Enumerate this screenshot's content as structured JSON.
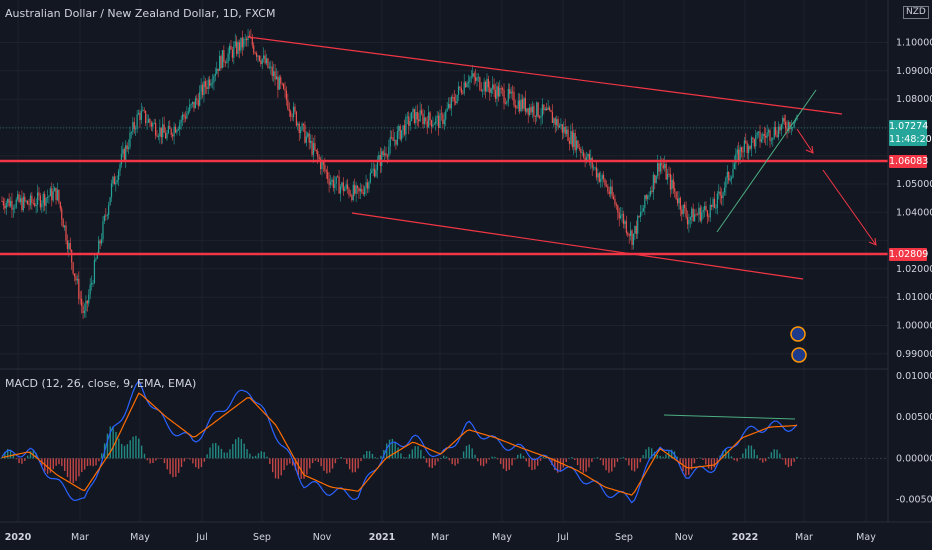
{
  "header": {
    "title": "Australian Dollar / New Zealand Dollar, 1D, FXCM",
    "currency": "NZD"
  },
  "price_panel": {
    "y_ticks": [
      "1.10000",
      "1.09000",
      "1.08000",
      "1.06083",
      "1.05000",
      "1.04000",
      "1.02809",
      "1.02000",
      "1.01000",
      "1.00000",
      "0.99000"
    ],
    "current_price": "1.07274",
    "countdown": "11:48:20",
    "resistance_label": "1.06083",
    "support_label": "1.02809",
    "colors": {
      "up": "#26a69a",
      "down": "#ef5350",
      "lines": "#f23645",
      "badge": "#26a69a",
      "trend": "#4caf82"
    }
  },
  "macd_panel": {
    "title": "MACD (12, 26, close, 9, EMA, EMA)",
    "y_ticks": [
      "0.01000",
      "0.00500",
      "0.00000",
      "-0.00500"
    ],
    "colors": {
      "macd": "#2962ff",
      "signal": "#ff6d00",
      "hist_up": "#26a69a",
      "hist_down": "#ef5350"
    }
  },
  "x_axis": {
    "labels": [
      "2020",
      "Mar",
      "May",
      "Jul",
      "Sep",
      "Nov",
      "2021",
      "Mar",
      "May",
      "Jul",
      "Sep",
      "Nov",
      "2022",
      "Mar",
      "May"
    ]
  },
  "chart_data": {
    "type": "line",
    "price": {
      "type": "line",
      "title": "Australian Dollar / New Zealand Dollar, 1D, FXCM",
      "ylim": [
        0.985,
        1.115
      ],
      "x": [
        "2020-01",
        "2020-02",
        "2020-03",
        "2020-03-mid",
        "2020-04",
        "2020-05",
        "2020-06",
        "2020-07",
        "2020-08",
        "2020-08-end",
        "2020-09",
        "2020-10",
        "2020-11",
        "2020-11-end",
        "2020-12",
        "2021-01",
        "2021-02",
        "2021-03",
        "2021-04",
        "2021-05",
        "2021-06",
        "2021-07",
        "2021-08",
        "2021-09",
        "2021-10",
        "2021-11",
        "2021-11-end",
        "2021-12",
        "2022-01",
        "2022-02"
      ],
      "close": [
        1.044,
        1.043,
        1.047,
        1.003,
        1.049,
        1.075,
        1.067,
        1.078,
        1.094,
        1.101,
        1.087,
        1.068,
        1.051,
        1.046,
        1.062,
        1.074,
        1.072,
        1.088,
        1.083,
        1.078,
        1.074,
        1.064,
        1.05,
        1.031,
        1.058,
        1.038,
        1.042,
        1.063,
        1.068,
        1.073
      ]
    },
    "macd": {
      "type": "line",
      "title": "MACD (12, 26, close, 9, EMA, EMA)",
      "ylim": [
        -0.0075,
        0.0105
      ],
      "x": [
        "2020-01",
        "2020-02",
        "2020-03",
        "2020-03-mid",
        "2020-04",
        "2020-05",
        "2020-06",
        "2020-07",
        "2020-08",
        "2020-08-end",
        "2020-09",
        "2020-10",
        "2020-11",
        "2020-11-end",
        "2020-12",
        "2021-01",
        "2021-02",
        "2021-03",
        "2021-04",
        "2021-05",
        "2021-06",
        "2021-07",
        "2021-08",
        "2021-09",
        "2021-10",
        "2021-11",
        "2021-11-end",
        "2021-12",
        "2022-01",
        "2022-02"
      ],
      "series": [
        {
          "name": "MACD",
          "values": [
            0.0002,
            0.001,
            -0.003,
            -0.0055,
            0.003,
            0.009,
            0.004,
            0.002,
            0.006,
            0.0085,
            0.003,
            -0.003,
            -0.004,
            -0.0045,
            0.001,
            0.0025,
            0.0,
            0.004,
            0.002,
            0.001,
            -0.0005,
            -0.002,
            -0.004,
            -0.005,
            0.002,
            -0.002,
            -0.001,
            0.003,
            0.004,
            0.0038
          ]
        },
        {
          "name": "Signal",
          "values": [
            0.0001,
            0.0008,
            -0.002,
            -0.004,
            0.001,
            0.008,
            0.005,
            0.0025,
            0.005,
            0.0075,
            0.004,
            -0.002,
            -0.0035,
            -0.004,
            0.0,
            0.002,
            0.0005,
            0.0035,
            0.0025,
            0.0012,
            0.0,
            -0.0015,
            -0.0035,
            -0.0045,
            0.0012,
            -0.0012,
            -0.0008,
            0.0025,
            0.0038,
            0.004
          ]
        }
      ]
    }
  }
}
